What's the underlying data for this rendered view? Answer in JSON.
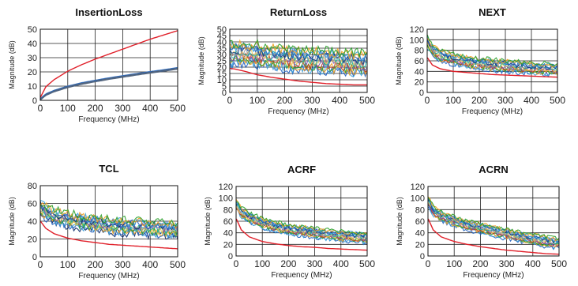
{
  "chart_data": [
    {
      "type": "line",
      "title": "InsertionLoss",
      "xlabel": "Frequency (MHz)",
      "ylabel": "Magnitude (dB)",
      "xlim": [
        0,
        500
      ],
      "ylim": [
        0,
        50
      ],
      "xticks": [
        0,
        100,
        200,
        300,
        400,
        500
      ],
      "yticks": [
        0,
        10,
        20,
        30,
        40,
        50
      ],
      "grid": true,
      "limit_line": {
        "color": "#e0202a",
        "x": [
          1,
          20,
          50,
          100,
          150,
          200,
          250,
          300,
          350,
          400,
          450,
          500
        ],
        "y": [
          2.2,
          9.5,
          14.5,
          20.5,
          25,
          29,
          32.5,
          36,
          39.5,
          43,
          46,
          49
        ]
      },
      "series_band": {
        "colors": [
          "#4a4a4a",
          "#2e6cc0",
          "#7a7a7a"
        ],
        "x": [
          1,
          20,
          50,
          100,
          150,
          200,
          250,
          300,
          350,
          400,
          450,
          500
        ],
        "y": [
          0.8,
          4,
          6.5,
          9.5,
          11.8,
          13.6,
          15.3,
          16.8,
          18.3,
          19.7,
          21,
          22.5
        ],
        "spread": 0.6,
        "count": 8,
        "noise": 0
      }
    },
    {
      "type": "line",
      "title": "ReturnLoss",
      "xlabel": "Frequency (MHz)",
      "ylabel": "Magnitude (dB)",
      "xlim": [
        0,
        500
      ],
      "ylim": [
        0,
        50
      ],
      "xticks": [
        0,
        100,
        200,
        300,
        400,
        500
      ],
      "yticks": [
        0,
        5,
        10,
        15,
        20,
        25,
        30,
        35,
        40,
        45,
        50
      ],
      "grid": true,
      "limit_line": {
        "color": "#e0202a",
        "x": [
          1,
          20,
          50,
          100,
          150,
          200,
          250,
          300,
          350,
          400,
          450,
          500
        ],
        "y": [
          19,
          18.5,
          17,
          14,
          12,
          10.5,
          9,
          8,
          7,
          6.5,
          6,
          6
        ]
      },
      "series_band": {
        "colors": [
          "#1f5fbf",
          "#3a9fd8",
          "#f0a020",
          "#2aa02a",
          "#c04020",
          "#7b4fb0",
          "#e8c85a",
          "#1ab0a0",
          "#a0a0a0",
          "#0a3a8a"
        ],
        "x": [
          1,
          50,
          100,
          150,
          200,
          250,
          300,
          350,
          400,
          450,
          500
        ],
        "y": [
          30,
          31,
          30,
          28,
          27,
          26,
          25,
          25,
          24,
          23,
          23
        ],
        "spread": 8,
        "count": 14,
        "noise": 4
      }
    },
    {
      "type": "line",
      "title": "NEXT",
      "xlabel": "Frequency (MHz)",
      "ylabel": "Magnitude (dB)",
      "xlim": [
        0,
        500
      ],
      "ylim": [
        0,
        120
      ],
      "xticks": [
        0,
        100,
        200,
        300,
        400,
        500
      ],
      "yticks": [
        0,
        20,
        40,
        60,
        80,
        100,
        120
      ],
      "grid": true,
      "limit_line": {
        "color": "#e0202a",
        "x": [
          1,
          20,
          50,
          100,
          150,
          200,
          250,
          300,
          350,
          400,
          450,
          500
        ],
        "y": [
          66,
          52,
          45,
          40,
          38,
          36,
          34,
          33,
          32,
          31,
          30,
          29
        ]
      },
      "series_band": {
        "colors": [
          "#1f5fbf",
          "#3a9fd8",
          "#f0a020",
          "#2aa02a",
          "#c04020",
          "#7b4fb0",
          "#e8c85a",
          "#1ab0a0",
          "#a0a0a0",
          "#0a3a8a"
        ],
        "x": [
          1,
          20,
          50,
          100,
          150,
          200,
          250,
          300,
          350,
          400,
          450,
          500
        ],
        "y": [
          95,
          80,
          70,
          63,
          58,
          55,
          52,
          50,
          48,
          46,
          45,
          44
        ],
        "spread": 10,
        "count": 14,
        "noise": 5
      }
    },
    {
      "type": "line",
      "title": "TCL",
      "xlabel": "Frequency (MHz)",
      "ylabel": "Magnitude (dB)",
      "xlim": [
        0,
        500
      ],
      "ylim": [
        0,
        80
      ],
      "xticks": [
        0,
        100,
        200,
        300,
        400,
        500
      ],
      "yticks": [
        0,
        20,
        40,
        60,
        80
      ],
      "grid": true,
      "limit_line": {
        "color": "#e0202a",
        "x": [
          1,
          20,
          50,
          100,
          150,
          200,
          250,
          300,
          350,
          400,
          450,
          500
        ],
        "y": [
          40,
          32,
          26,
          21,
          18,
          16,
          14,
          13,
          12,
          11,
          10,
          9
        ]
      },
      "series_band": {
        "colors": [
          "#0a2a6a",
          "#1f5fbf",
          "#3a9fd8",
          "#f0a020",
          "#2aa02a",
          "#e8c85a",
          "#1ab0a0",
          "#7b4fb0",
          "#a0a0a0"
        ],
        "x": [
          1,
          20,
          50,
          100,
          150,
          200,
          250,
          300,
          350,
          400,
          450,
          500
        ],
        "y": [
          56,
          50,
          46,
          42,
          39,
          37,
          35,
          34,
          33,
          32,
          31,
          30
        ],
        "spread": 7,
        "count": 14,
        "noise": 5
      }
    },
    {
      "type": "line",
      "title": "ACRF",
      "xlabel": "Frequency (MHz)",
      "ylabel": "Magnitude (dB)",
      "xlim": [
        0,
        500
      ],
      "ylim": [
        0,
        120
      ],
      "xticks": [
        0,
        100,
        200,
        300,
        400,
        500
      ],
      "yticks": [
        0,
        20,
        40,
        60,
        80,
        100,
        120
      ],
      "grid": true,
      "limit_line": {
        "color": "#e0202a",
        "x": [
          1,
          20,
          50,
          100,
          150,
          200,
          250,
          300,
          350,
          400,
          450,
          500
        ],
        "y": [
          64,
          45,
          33,
          25,
          21,
          18,
          16,
          15,
          13,
          12,
          11,
          10
        ]
      },
      "series_band": {
        "colors": [
          "#1f5fbf",
          "#3a9fd8",
          "#f0a020",
          "#2aa02a",
          "#c04020",
          "#7b4fb0",
          "#e8c85a",
          "#1ab0a0",
          "#a0a0a0",
          "#0a3a8a"
        ],
        "x": [
          1,
          20,
          50,
          100,
          150,
          200,
          250,
          300,
          350,
          400,
          450,
          500
        ],
        "y": [
          88,
          75,
          66,
          57,
          50,
          46,
          43,
          40,
          37,
          35,
          33,
          31
        ],
        "spread": 8,
        "count": 14,
        "noise": 4
      }
    },
    {
      "type": "line",
      "title": "ACRN",
      "xlabel": "Frequency (MHz)",
      "ylabel": "Magnitude (dB)",
      "xlim": [
        0,
        500
      ],
      "ylim": [
        0,
        120
      ],
      "xticks": [
        0,
        100,
        200,
        300,
        400,
        500
      ],
      "yticks": [
        0,
        20,
        40,
        60,
        80,
        100,
        120
      ],
      "grid": true,
      "limit_line": {
        "color": "#e0202a",
        "x": [
          1,
          20,
          50,
          100,
          150,
          200,
          250,
          300,
          350,
          400,
          450,
          500
        ],
        "y": [
          64,
          45,
          33,
          25,
          20,
          16,
          13,
          10,
          8,
          6,
          4,
          3
        ]
      },
      "series_band": {
        "colors": [
          "#1f5fbf",
          "#3a9fd8",
          "#f0a020",
          "#2aa02a",
          "#c04020",
          "#7b4fb0",
          "#e8c85a",
          "#1ab0a0",
          "#a0a0a0",
          "#0a3a8a"
        ],
        "x": [
          1,
          20,
          50,
          100,
          150,
          200,
          250,
          300,
          350,
          400,
          450,
          500
        ],
        "y": [
          95,
          78,
          68,
          60,
          53,
          48,
          43,
          38,
          33,
          29,
          25,
          22
        ],
        "spread": 8,
        "count": 14,
        "noise": 4
      }
    }
  ]
}
